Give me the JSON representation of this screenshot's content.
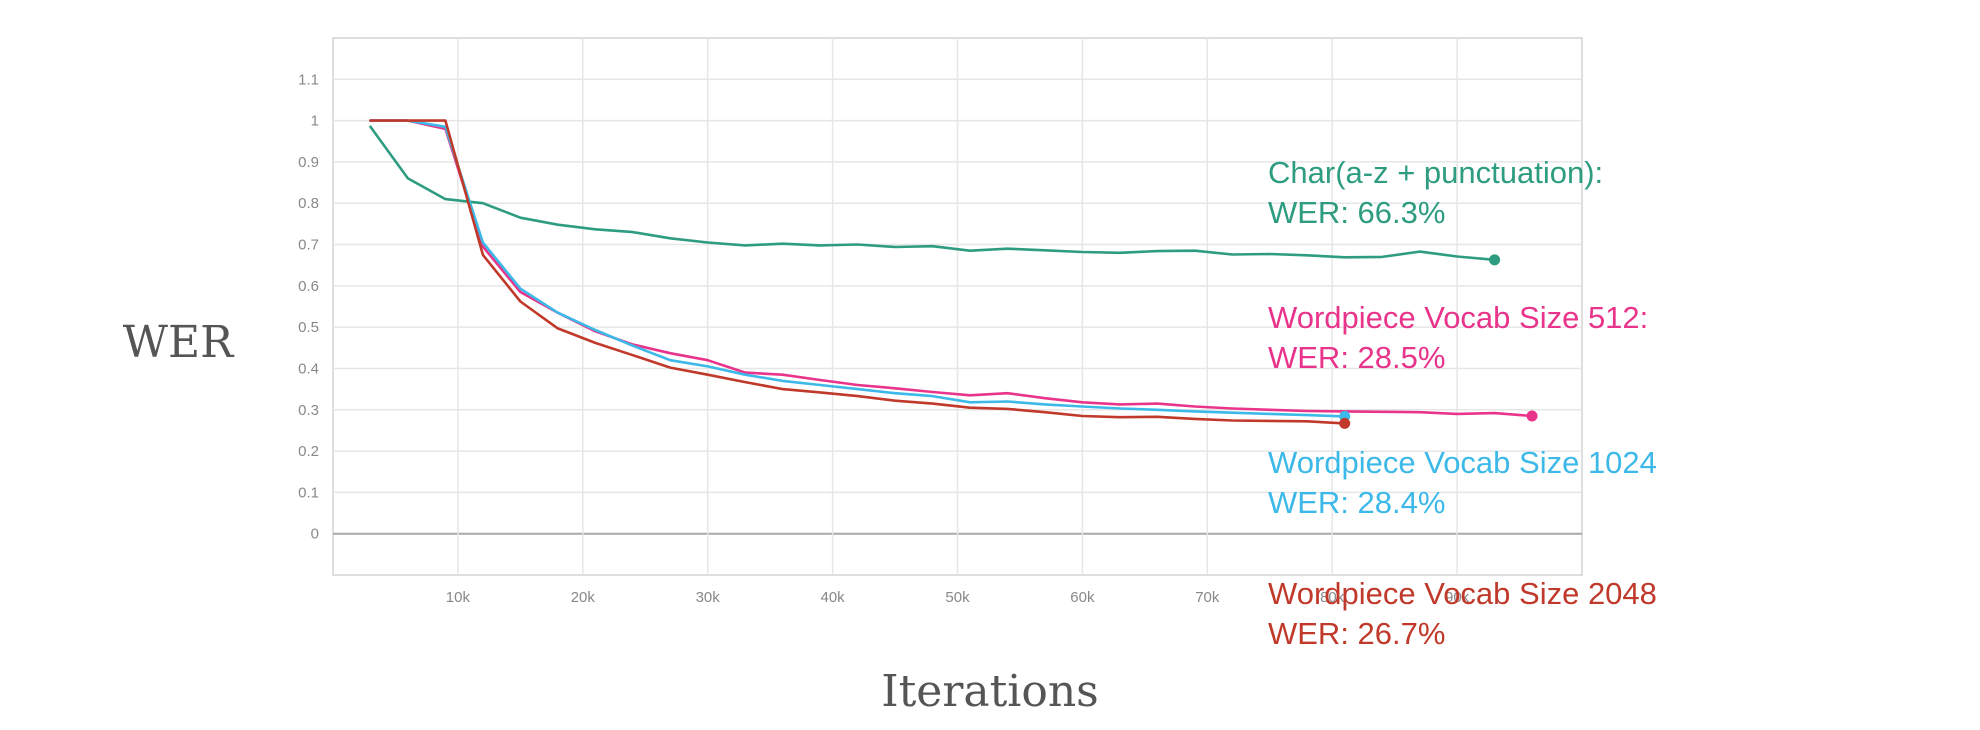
{
  "chart_data": {
    "type": "line",
    "xlabel": "Iterations",
    "ylabel": "WER",
    "xlim": [
      0,
      100000
    ],
    "ylim": [
      -0.1,
      1.2
    ],
    "x_ticks": [
      10000,
      20000,
      30000,
      40000,
      50000,
      60000,
      70000,
      80000,
      90000
    ],
    "x_tick_labels": [
      "10k",
      "20k",
      "30k",
      "40k",
      "50k",
      "60k",
      "70k",
      "80k",
      "90k"
    ],
    "y_ticks": [
      0,
      0.1,
      0.2,
      0.3,
      0.4,
      0.5,
      0.6,
      0.7,
      0.8,
      0.9,
      1,
      1.1
    ],
    "y_tick_labels": [
      "0",
      "0.1",
      "0.2",
      "0.3",
      "0.4",
      "0.5",
      "0.6",
      "0.7",
      "0.8",
      "0.9",
      "1",
      "1.1"
    ],
    "grid": true,
    "series": [
      {
        "annotation": [
          "Char(a-z + punctuation):",
          "WER: 66.3%"
        ],
        "color": "#2e9c80",
        "x": [
          3000,
          6000,
          9000,
          12000,
          15000,
          18000,
          21000,
          24000,
          27000,
          30000,
          33000,
          36000,
          39000,
          42000,
          45000,
          48000,
          51000,
          54000,
          57000,
          60000,
          63000,
          66000,
          69000,
          72000,
          75000,
          78000,
          81000,
          84000,
          87000,
          90000,
          93000
        ],
        "y": [
          0.985,
          0.86,
          0.81,
          0.8,
          0.765,
          0.748,
          0.737,
          0.73,
          0.715,
          0.705,
          0.698,
          0.702,
          0.698,
          0.7,
          0.694,
          0.696,
          0.685,
          0.69,
          0.686,
          0.682,
          0.68,
          0.684,
          0.685,
          0.676,
          0.677,
          0.674,
          0.669,
          0.67,
          0.683,
          0.671,
          0.663
        ]
      },
      {
        "annotation": [
          "Wordpiece Vocab Size 512:",
          "WER: 28.5%"
        ],
        "color": "#e8348a",
        "x": [
          3000,
          6000,
          9000,
          12000,
          15000,
          18000,
          21000,
          24000,
          27000,
          30000,
          33000,
          36000,
          39000,
          42000,
          45000,
          48000,
          51000,
          54000,
          57000,
          60000,
          63000,
          66000,
          69000,
          72000,
          75000,
          78000,
          81000,
          84000,
          87000,
          90000,
          93000,
          96000
        ],
        "y": [
          1.0,
          1.0,
          0.98,
          0.695,
          0.585,
          0.535,
          0.49,
          0.458,
          0.437,
          0.42,
          0.39,
          0.385,
          0.372,
          0.36,
          0.352,
          0.343,
          0.335,
          0.34,
          0.328,
          0.318,
          0.313,
          0.315,
          0.308,
          0.303,
          0.3,
          0.297,
          0.296,
          0.295,
          0.294,
          0.29,
          0.292,
          0.285
        ]
      },
      {
        "annotation": [
          "Wordpiece Vocab Size 1024",
          "WER: 28.4%"
        ],
        "color": "#3cb9e8",
        "x": [
          3000,
          6000,
          9000,
          12000,
          15000,
          18000,
          21000,
          24000,
          27000,
          30000,
          33000,
          36000,
          39000,
          42000,
          45000,
          48000,
          51000,
          54000,
          57000,
          60000,
          63000,
          66000,
          69000,
          72000,
          75000,
          78000,
          81000
        ],
        "y": [
          1.0,
          1.0,
          0.985,
          0.705,
          0.593,
          0.535,
          0.493,
          0.455,
          0.42,
          0.405,
          0.385,
          0.37,
          0.36,
          0.35,
          0.34,
          0.333,
          0.318,
          0.32,
          0.313,
          0.308,
          0.303,
          0.3,
          0.296,
          0.293,
          0.29,
          0.287,
          0.284
        ]
      },
      {
        "annotation": [
          "Wordpiece Vocab Size 2048",
          "WER: 26.7%"
        ],
        "color": "#c0392b",
        "x": [
          3000,
          6000,
          9000,
          12000,
          15000,
          18000,
          21000,
          24000,
          27000,
          30000,
          33000,
          36000,
          39000,
          42000,
          45000,
          48000,
          51000,
          54000,
          57000,
          60000,
          63000,
          66000,
          69000,
          72000,
          75000,
          78000,
          81000
        ],
        "y": [
          1.0,
          1.0,
          1.0,
          0.675,
          0.562,
          0.497,
          0.462,
          0.432,
          0.402,
          0.385,
          0.367,
          0.35,
          0.342,
          0.333,
          0.322,
          0.315,
          0.305,
          0.302,
          0.294,
          0.285,
          0.282,
          0.283,
          0.278,
          0.274,
          0.273,
          0.272,
          0.267
        ]
      }
    ]
  }
}
